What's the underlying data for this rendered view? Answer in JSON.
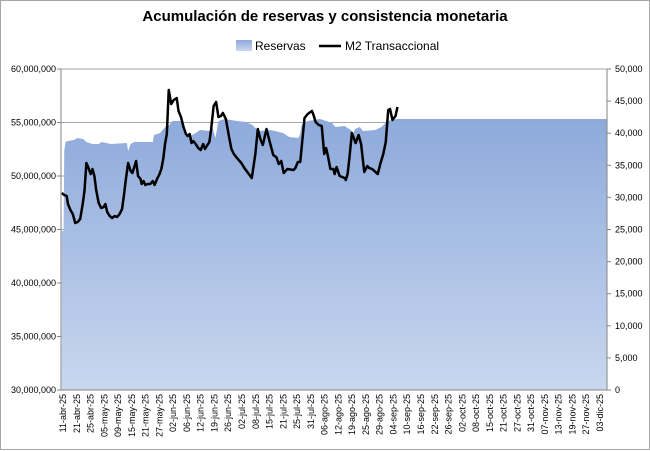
{
  "chart_data": {
    "type": "area+line",
    "title": "Acumulación de reservas y consistencia monetaria",
    "legend": {
      "position": "top",
      "entries": [
        "Reservas",
        "M2 Transaccional"
      ]
    },
    "categories": [
      "11-abr-25",
      "21-abr-25",
      "25-abr-25",
      "05-may-25",
      "09-may-25",
      "15-may-25",
      "21-may-25",
      "27-may-25",
      "02-jun-25",
      "06-jun-25",
      "12-jun-25",
      "19-jun-25",
      "26-jun-25",
      "02-jul-25",
      "08-jul-25",
      "15-jul-25",
      "21-jul-25",
      "25-jul-25",
      "31-jul-25",
      "06-ago-25",
      "12-ago-25",
      "19-ago-25",
      "25-ago-25",
      "29-ago-25",
      "04-sep-25",
      "10-sep-25",
      "16-sep-25",
      "22-sep-25",
      "26-sep-25",
      "02-oct-25",
      "08-oct-25",
      "15-oct-25",
      "21-oct-25",
      "27-oct-25",
      "31-oct-25",
      "07-nov-25",
      "13-nov-25",
      "19-nov-25",
      "27-nov-25",
      "03-dic-25"
    ],
    "left_axis": {
      "label": "Reservas",
      "unit": "millions",
      "range": [
        30,
        60
      ],
      "ticks": [
        "30,000,000",
        "35,000,000",
        "40,000,000",
        "45,000,000",
        "50,000,000",
        "55,000,000",
        "60,000,000"
      ]
    },
    "right_axis": {
      "label": "M2 Transaccional",
      "range": [
        0,
        50000
      ],
      "ticks": [
        "0",
        "5,000",
        "10,000",
        "15,000",
        "20,000",
        "25,000",
        "30,000",
        "35,000",
        "40,000",
        "45,000",
        "50,000"
      ]
    },
    "grid": true,
    "x_note": "x values are positions in tick-label index units along the category axis",
    "series": [
      {
        "name": "Reservas",
        "type": "area",
        "axis": "left",
        "color": "#8eaadb",
        "points": [
          [
            -0.09,
            44.86
          ],
          [
            0.04,
            44.86
          ],
          [
            0.09,
            52.34
          ],
          [
            0.18,
            53.18
          ],
          [
            0.36,
            53.27
          ],
          [
            0.8,
            53.36
          ],
          [
            1.03,
            53.55
          ],
          [
            1.47,
            53.46
          ],
          [
            1.7,
            53.18
          ],
          [
            2.14,
            52.99
          ],
          [
            2.59,
            52.99
          ],
          [
            2.81,
            53.18
          ],
          [
            3.48,
            52.99
          ],
          [
            4.64,
            53.08
          ],
          [
            4.73,
            52.34
          ],
          [
            4.91,
            52.99
          ],
          [
            5.18,
            53.18
          ],
          [
            6.52,
            53.18
          ],
          [
            6.61,
            53.83
          ],
          [
            7.05,
            54.02
          ],
          [
            7.23,
            54.3
          ],
          [
            7.5,
            54.67
          ],
          [
            7.72,
            54.77
          ],
          [
            7.95,
            55.14
          ],
          [
            8.57,
            55.14
          ],
          [
            8.75,
            54.21
          ],
          [
            9.06,
            53.64
          ],
          [
            9.51,
            53.93
          ],
          [
            9.96,
            54.3
          ],
          [
            10.71,
            54.21
          ],
          [
            10.85,
            54.58
          ],
          [
            11.07,
            53.55
          ],
          [
            11.29,
            55.14
          ],
          [
            11.74,
            55.33
          ],
          [
            12.63,
            55.14
          ],
          [
            13.3,
            55.05
          ],
          [
            13.75,
            54.77
          ],
          [
            14.2,
            54.21
          ],
          [
            15.09,
            54.3
          ],
          [
            15.98,
            54.02
          ],
          [
            16.43,
            53.64
          ],
          [
            17.1,
            53.55
          ],
          [
            17.23,
            53.93
          ],
          [
            17.32,
            54.77
          ],
          [
            17.77,
            55.14
          ],
          [
            18.66,
            55.33
          ],
          [
            19.11,
            55.14
          ],
          [
            19.55,
            54.95
          ],
          [
            19.78,
            54.58
          ],
          [
            20.45,
            54.67
          ],
          [
            20.89,
            54.3
          ],
          [
            21.12,
            54.02
          ],
          [
            21.2,
            54.39
          ],
          [
            21.56,
            54.58
          ],
          [
            21.79,
            54.21
          ],
          [
            22.68,
            54.3
          ],
          [
            23.13,
            54.58
          ],
          [
            23.57,
            55.14
          ],
          [
            24.29,
            55.33
          ]
        ]
      },
      {
        "name": "M2 Transaccional",
        "type": "line",
        "axis": "right",
        "color": "#000000",
        "points": [
          [
            -0.09,
            30700
          ],
          [
            0.09,
            30370
          ],
          [
            0.27,
            30220
          ],
          [
            0.36,
            28970
          ],
          [
            0.54,
            28040
          ],
          [
            0.71,
            27410
          ],
          [
            0.89,
            26010
          ],
          [
            1.07,
            26170
          ],
          [
            1.25,
            26640
          ],
          [
            1.43,
            28970
          ],
          [
            1.56,
            31000
          ],
          [
            1.7,
            35360
          ],
          [
            1.88,
            34420
          ],
          [
            2.01,
            33640
          ],
          [
            2.14,
            34420
          ],
          [
            2.28,
            33330
          ],
          [
            2.41,
            31150
          ],
          [
            2.59,
            29130
          ],
          [
            2.77,
            28350
          ],
          [
            2.95,
            28500
          ],
          [
            3.08,
            28970
          ],
          [
            3.21,
            27730
          ],
          [
            3.39,
            27100
          ],
          [
            3.57,
            26790
          ],
          [
            3.75,
            27100
          ],
          [
            3.93,
            26950
          ],
          [
            4.11,
            27410
          ],
          [
            4.29,
            28190
          ],
          [
            4.42,
            30220
          ],
          [
            4.55,
            32550
          ],
          [
            4.73,
            35360
          ],
          [
            4.91,
            34110
          ],
          [
            5.04,
            33800
          ],
          [
            5.18,
            34730
          ],
          [
            5.31,
            35670
          ],
          [
            5.45,
            33330
          ],
          [
            5.63,
            32870
          ],
          [
            5.71,
            32090
          ],
          [
            5.85,
            32550
          ],
          [
            5.98,
            31930
          ],
          [
            6.16,
            32090
          ],
          [
            6.34,
            32090
          ],
          [
            6.52,
            32550
          ],
          [
            6.65,
            31930
          ],
          [
            6.83,
            32870
          ],
          [
            7.01,
            33640
          ],
          [
            7.14,
            34420
          ],
          [
            7.28,
            35980
          ],
          [
            7.41,
            38320
          ],
          [
            7.54,
            39870
          ],
          [
            7.68,
            46730
          ],
          [
            7.86,
            44550
          ],
          [
            8.04,
            45170
          ],
          [
            8.26,
            45480
          ],
          [
            8.39,
            43460
          ],
          [
            8.57,
            42520
          ],
          [
            8.75,
            40970
          ],
          [
            8.93,
            39870
          ],
          [
            9.06,
            39560
          ],
          [
            9.2,
            39870
          ],
          [
            9.33,
            38470
          ],
          [
            9.46,
            38780
          ],
          [
            9.64,
            38320
          ],
          [
            9.82,
            37690
          ],
          [
            10.0,
            37380
          ],
          [
            10.18,
            38320
          ],
          [
            10.31,
            37540
          ],
          [
            10.49,
            38160
          ],
          [
            10.63,
            38630
          ],
          [
            10.76,
            40650
          ],
          [
            10.94,
            44240
          ],
          [
            11.12,
            44860
          ],
          [
            11.29,
            42520
          ],
          [
            11.47,
            42680
          ],
          [
            11.61,
            43150
          ],
          [
            11.83,
            42210
          ],
          [
            12.05,
            39560
          ],
          [
            12.23,
            37540
          ],
          [
            12.41,
            36760
          ],
          [
            12.63,
            36140
          ],
          [
            12.95,
            35360
          ],
          [
            13.17,
            34580
          ],
          [
            13.44,
            33800
          ],
          [
            13.71,
            33020
          ],
          [
            13.97,
            36760
          ],
          [
            14.15,
            40650
          ],
          [
            14.33,
            39100
          ],
          [
            14.51,
            38160
          ],
          [
            14.78,
            40650
          ],
          [
            15.0,
            38780
          ],
          [
            15.27,
            36600
          ],
          [
            15.49,
            36290
          ],
          [
            15.67,
            35200
          ],
          [
            15.85,
            35670
          ],
          [
            16.03,
            33800
          ],
          [
            16.29,
            34420
          ],
          [
            16.74,
            34270
          ],
          [
            16.88,
            34580
          ],
          [
            17.05,
            35510
          ],
          [
            17.23,
            35510
          ],
          [
            17.54,
            42370
          ],
          [
            17.77,
            42990
          ],
          [
            18.08,
            43460
          ],
          [
            18.17,
            42990
          ],
          [
            18.35,
            41740
          ],
          [
            18.57,
            41280
          ],
          [
            18.79,
            41120
          ],
          [
            18.97,
            36760
          ],
          [
            19.11,
            37690
          ],
          [
            19.24,
            36450
          ],
          [
            19.42,
            34420
          ],
          [
            19.64,
            34420
          ],
          [
            19.73,
            33640
          ],
          [
            19.87,
            34730
          ],
          [
            20.09,
            33330
          ],
          [
            20.45,
            33020
          ],
          [
            20.54,
            32710
          ],
          [
            20.67,
            33640
          ],
          [
            20.8,
            36140
          ],
          [
            20.98,
            40030
          ],
          [
            21.25,
            38470
          ],
          [
            21.47,
            39720
          ],
          [
            21.65,
            38320
          ],
          [
            21.88,
            33960
          ],
          [
            22.1,
            34890
          ],
          [
            22.23,
            34580
          ],
          [
            22.46,
            34420
          ],
          [
            22.86,
            33640
          ],
          [
            23.04,
            35200
          ],
          [
            23.26,
            36760
          ],
          [
            23.44,
            38630
          ],
          [
            23.62,
            43610
          ],
          [
            23.75,
            43770
          ],
          [
            23.93,
            42060
          ],
          [
            24.15,
            42680
          ],
          [
            24.29,
            44080
          ]
        ]
      }
    ]
  }
}
